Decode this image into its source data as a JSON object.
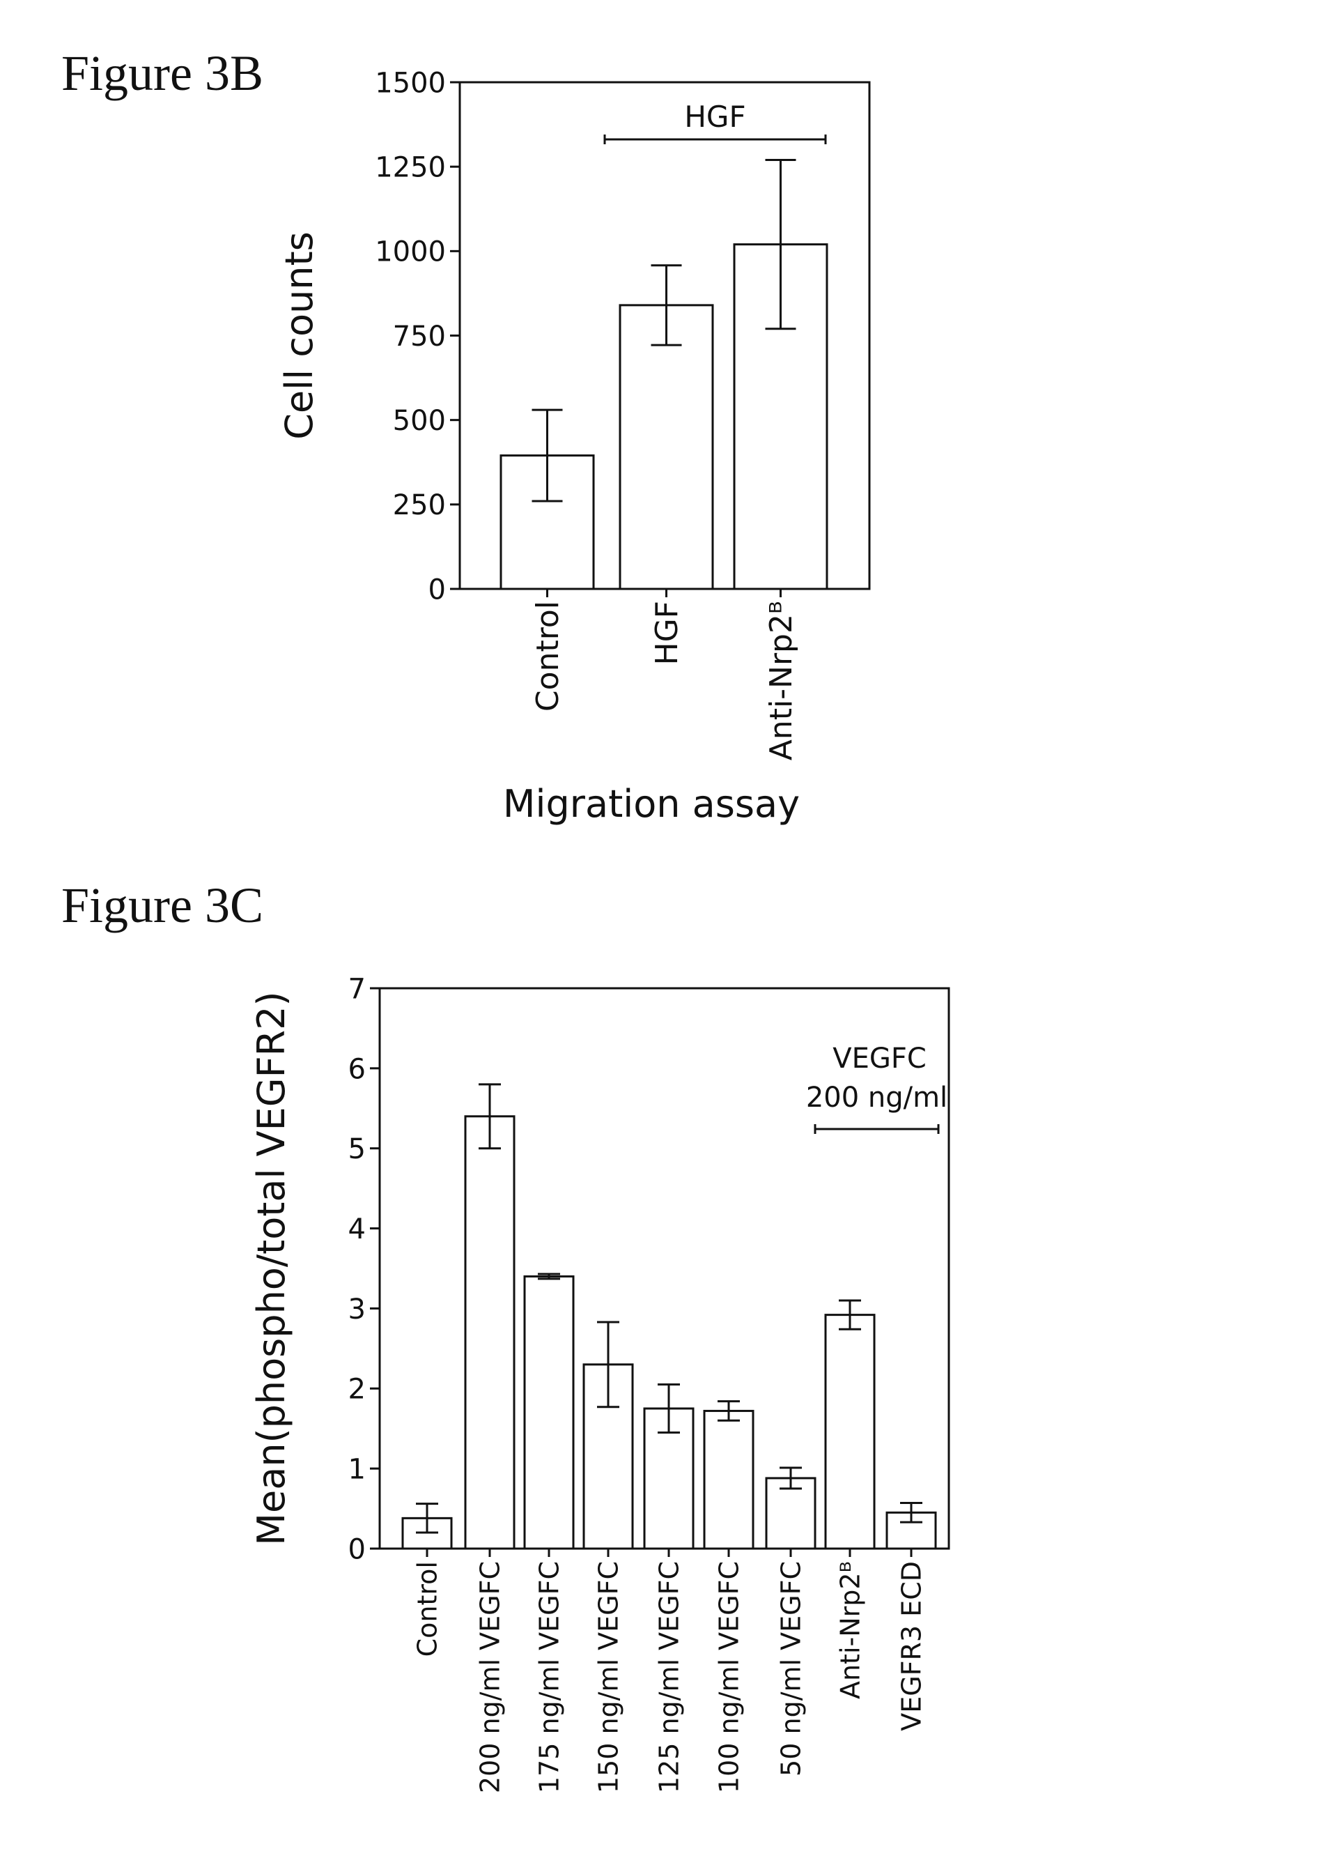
{
  "figure_3b": {
    "label": "Figure 3B"
  },
  "figure_3c": {
    "label": "Figure 3C"
  },
  "chart_data": [
    {
      "id": "3B",
      "type": "bar",
      "title": "",
      "xlabel": "Migration assay",
      "ylabel": "Cell counts",
      "ylim": [
        0,
        1500
      ],
      "yticks": [
        0,
        250,
        500,
        750,
        1000,
        1250,
        1500
      ],
      "categories": [
        "Control",
        "HGF",
        "Anti-Nrp2ᴮ"
      ],
      "values": [
        395,
        840,
        1020
      ],
      "errors": [
        135,
        118,
        250
      ],
      "bracket": {
        "label": "HGF",
        "from": 1,
        "to": 2
      },
      "grid": false
    },
    {
      "id": "3C",
      "type": "bar",
      "title": "",
      "xlabel": "",
      "ylabel": "Mean(phospho/total VEGFR2)",
      "ylim": [
        0,
        7
      ],
      "yticks": [
        0,
        1,
        2,
        3,
        4,
        5,
        6,
        7
      ],
      "categories": [
        "Control",
        "200 ng/ml VEGFC",
        "175 ng/ml VEGFC",
        "150 ng/ml VEGFC",
        "125 ng/ml VEGFC",
        "100 ng/ml VEGFC",
        "50 ng/ml VEGFC",
        "Anti-Nrp2ᴮ",
        "VEGFR3 ECD"
      ],
      "values": [
        0.38,
        5.4,
        3.4,
        2.3,
        1.75,
        1.72,
        0.88,
        2.92,
        0.45
      ],
      "errors": [
        0.18,
        0.4,
        0.03,
        0.53,
        0.3,
        0.12,
        0.13,
        0.18,
        0.12
      ],
      "bracket": {
        "label_line1": "VEGFC",
        "label_line2": "200 ng/ml",
        "from": 7,
        "to": 8
      },
      "grid": false
    }
  ]
}
